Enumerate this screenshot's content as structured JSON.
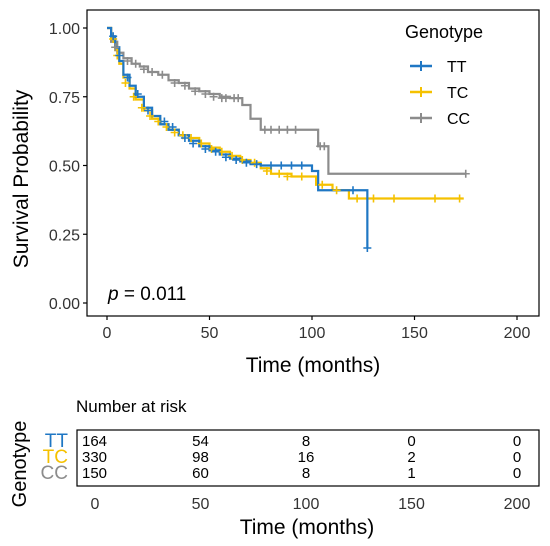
{
  "chart_data": {
    "type": "line",
    "subtype": "kaplan-meier",
    "xlabel": "Time (months)",
    "ylabel": "Survival Probability",
    "xlim": [
      0,
      200
    ],
    "ylim": [
      0,
      1
    ],
    "x_ticks": [
      0,
      50,
      100,
      150,
      200
    ],
    "y_ticks": [
      0.0,
      0.25,
      0.5,
      0.75,
      1.0
    ],
    "y_tick_labels": [
      "0.00",
      "0.25",
      "0.50",
      "0.75",
      "1.00"
    ],
    "x_tick_labels": [
      "0",
      "50",
      "100",
      "150",
      "200"
    ],
    "grid": false,
    "legend_title": "Genotype",
    "legend_position": "top-right",
    "p_label": "p",
    "p_value_text": " = 0.011",
    "series": [
      {
        "name": "TT",
        "color": "#1f77c4",
        "steps": [
          [
            0,
            1.0
          ],
          [
            2,
            0.97
          ],
          [
            4,
            0.93
          ],
          [
            6,
            0.88
          ],
          [
            8,
            0.83
          ],
          [
            11,
            0.79
          ],
          [
            14,
            0.75
          ],
          [
            18,
            0.71
          ],
          [
            22,
            0.68
          ],
          [
            26,
            0.65
          ],
          [
            30,
            0.63
          ],
          [
            35,
            0.61
          ],
          [
            40,
            0.59
          ],
          [
            45,
            0.57
          ],
          [
            50,
            0.555
          ],
          [
            55,
            0.54
          ],
          [
            60,
            0.525
          ],
          [
            65,
            0.515
          ],
          [
            70,
            0.505
          ],
          [
            75,
            0.5
          ],
          [
            100,
            0.48
          ],
          [
            103,
            0.41
          ],
          [
            127,
            0.41
          ],
          [
            127,
            0.2
          ]
        ],
        "censor": [
          [
            3,
            0.97
          ],
          [
            6,
            0.9
          ],
          [
            10,
            0.82
          ],
          [
            15,
            0.76
          ],
          [
            20,
            0.7
          ],
          [
            28,
            0.66
          ],
          [
            32,
            0.64
          ],
          [
            38,
            0.6
          ],
          [
            42,
            0.58
          ],
          [
            48,
            0.56
          ],
          [
            53,
            0.55
          ],
          [
            58,
            0.53
          ],
          [
            63,
            0.52
          ],
          [
            68,
            0.51
          ],
          [
            73,
            0.505
          ],
          [
            80,
            0.5
          ],
          [
            85,
            0.5
          ],
          [
            90,
            0.5
          ],
          [
            95,
            0.5
          ],
          [
            120,
            0.41
          ],
          [
            127,
            0.2
          ]
        ]
      },
      {
        "name": "TC",
        "color": "#f5c100",
        "steps": [
          [
            0,
            1.0
          ],
          [
            2,
            0.96
          ],
          [
            4,
            0.92
          ],
          [
            6,
            0.87
          ],
          [
            8,
            0.82
          ],
          [
            11,
            0.78
          ],
          [
            14,
            0.74
          ],
          [
            18,
            0.7
          ],
          [
            22,
            0.67
          ],
          [
            26,
            0.65
          ],
          [
            30,
            0.63
          ],
          [
            35,
            0.61
          ],
          [
            40,
            0.6
          ],
          [
            45,
            0.58
          ],
          [
            50,
            0.565
          ],
          [
            55,
            0.55
          ],
          [
            60,
            0.535
          ],
          [
            65,
            0.52
          ],
          [
            70,
            0.51
          ],
          [
            75,
            0.49
          ],
          [
            80,
            0.47
          ],
          [
            90,
            0.46
          ],
          [
            102,
            0.43
          ],
          [
            110,
            0.41
          ],
          [
            118,
            0.38
          ],
          [
            174,
            0.38
          ]
        ],
        "censor": [
          [
            3,
            0.96
          ],
          [
            5,
            0.9
          ],
          [
            9,
            0.8
          ],
          [
            13,
            0.75
          ],
          [
            17,
            0.71
          ],
          [
            21,
            0.68
          ],
          [
            25,
            0.66
          ],
          [
            29,
            0.64
          ],
          [
            33,
            0.62
          ],
          [
            37,
            0.61
          ],
          [
            41,
            0.6
          ],
          [
            46,
            0.58
          ],
          [
            51,
            0.56
          ],
          [
            56,
            0.55
          ],
          [
            61,
            0.535
          ],
          [
            66,
            0.52
          ],
          [
            72,
            0.51
          ],
          [
            78,
            0.48
          ],
          [
            84,
            0.47
          ],
          [
            88,
            0.46
          ],
          [
            95,
            0.46
          ],
          [
            105,
            0.43
          ],
          [
            112,
            0.41
          ],
          [
            122,
            0.38
          ],
          [
            130,
            0.38
          ],
          [
            140,
            0.38
          ],
          [
            160,
            0.38
          ],
          [
            172,
            0.38
          ]
        ]
      },
      {
        "name": "CC",
        "color": "#8c8c8c",
        "steps": [
          [
            0,
            1.0
          ],
          [
            2,
            0.95
          ],
          [
            5,
            0.91
          ],
          [
            8,
            0.89
          ],
          [
            12,
            0.87
          ],
          [
            16,
            0.86
          ],
          [
            20,
            0.84
          ],
          [
            25,
            0.83
          ],
          [
            30,
            0.81
          ],
          [
            35,
            0.8
          ],
          [
            40,
            0.78
          ],
          [
            45,
            0.77
          ],
          [
            50,
            0.76
          ],
          [
            55,
            0.75
          ],
          [
            60,
            0.745
          ],
          [
            66,
            0.72
          ],
          [
            70,
            0.67
          ],
          [
            75,
            0.63
          ],
          [
            103,
            0.57
          ],
          [
            108,
            0.47
          ],
          [
            175,
            0.47
          ]
        ],
        "censor": [
          [
            4,
            0.93
          ],
          [
            10,
            0.88
          ],
          [
            14,
            0.87
          ],
          [
            18,
            0.85
          ],
          [
            22,
            0.84
          ],
          [
            27,
            0.83
          ],
          [
            33,
            0.8
          ],
          [
            38,
            0.79
          ],
          [
            43,
            0.77
          ],
          [
            48,
            0.76
          ],
          [
            52,
            0.75
          ],
          [
            56,
            0.745
          ],
          [
            58,
            0.745
          ],
          [
            62,
            0.745
          ],
          [
            64,
            0.745
          ],
          [
            77,
            0.63
          ],
          [
            80,
            0.63
          ],
          [
            84,
            0.63
          ],
          [
            88,
            0.63
          ],
          [
            92,
            0.63
          ],
          [
            104,
            0.57
          ],
          [
            106,
            0.57
          ],
          [
            175,
            0.47
          ]
        ]
      }
    ],
    "risk_table": {
      "title": "Number at risk",
      "ylabel": "Genotype",
      "xlabel": "Time (months)",
      "times": [
        0,
        50,
        100,
        150,
        200
      ],
      "rows": [
        {
          "name": "TT",
          "color": "#1f77c4",
          "values": [
            "164",
            "54",
            "8",
            "0",
            "0"
          ]
        },
        {
          "name": "TC",
          "color": "#f5c100",
          "values": [
            "330",
            "98",
            "16",
            "2",
            "0"
          ]
        },
        {
          "name": "CC",
          "color": "#8c8c8c",
          "values": [
            "150",
            "60",
            "8",
            "1",
            "0"
          ]
        }
      ]
    }
  }
}
